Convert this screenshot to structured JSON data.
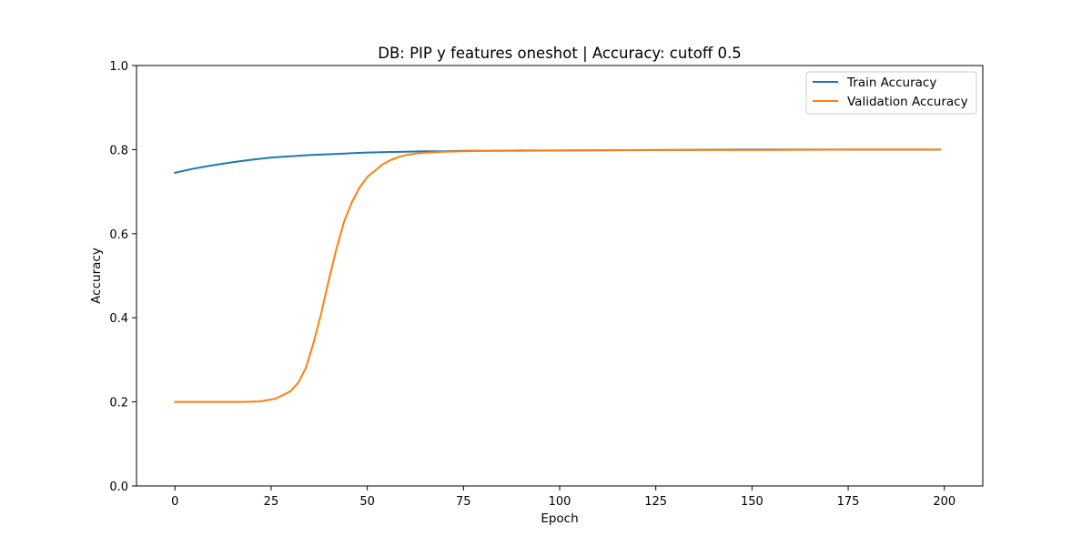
{
  "chart_data": {
    "type": "line",
    "title": "DB: PIP y features oneshot | Accuracy: cutoff 0.5",
    "xlabel": "Epoch",
    "ylabel": "Accuracy",
    "xlim": [
      -10,
      210
    ],
    "ylim": [
      0.0,
      1.0
    ],
    "xticks": [
      0,
      25,
      50,
      75,
      100,
      125,
      150,
      175,
      200
    ],
    "yticks": [
      0.0,
      0.2,
      0.4,
      0.6,
      0.8,
      1.0
    ],
    "xtick_labels": [
      "0",
      "25",
      "50",
      "75",
      "100",
      "125",
      "150",
      "175",
      "200"
    ],
    "ytick_labels": [
      "0.0",
      "0.2",
      "0.4",
      "0.6",
      "0.8",
      "1.0"
    ],
    "grid": false,
    "legend_position": "top-right",
    "series": [
      {
        "name": "Train Accuracy",
        "color": "#1f77b4",
        "x": [
          0,
          5,
          10,
          15,
          20,
          25,
          30,
          35,
          40,
          45,
          50,
          55,
          60,
          65,
          70,
          75,
          80,
          90,
          100,
          125,
          150,
          175,
          199
        ],
        "y": [
          0.745,
          0.755,
          0.763,
          0.77,
          0.776,
          0.781,
          0.784,
          0.787,
          0.789,
          0.791,
          0.793,
          0.794,
          0.795,
          0.796,
          0.796,
          0.797,
          0.797,
          0.798,
          0.798,
          0.799,
          0.8,
          0.8,
          0.8
        ]
      },
      {
        "name": "Validation Accuracy",
        "color": "#ff7f0e",
        "x": [
          0,
          10,
          18,
          22,
          24,
          26,
          28,
          30,
          32,
          34,
          36,
          38,
          40,
          42,
          44,
          46,
          48,
          50,
          52,
          54,
          56,
          58,
          60,
          63,
          66,
          70,
          75,
          80,
          90,
          100,
          125,
          150,
          175,
          199
        ],
        "y": [
          0.2,
          0.2,
          0.2,
          0.201,
          0.204,
          0.207,
          0.216,
          0.225,
          0.245,
          0.28,
          0.34,
          0.41,
          0.49,
          0.565,
          0.63,
          0.675,
          0.71,
          0.735,
          0.75,
          0.765,
          0.775,
          0.782,
          0.787,
          0.791,
          0.793,
          0.795,
          0.796,
          0.797,
          0.797,
          0.798,
          0.799,
          0.799,
          0.8,
          0.8
        ]
      }
    ]
  }
}
